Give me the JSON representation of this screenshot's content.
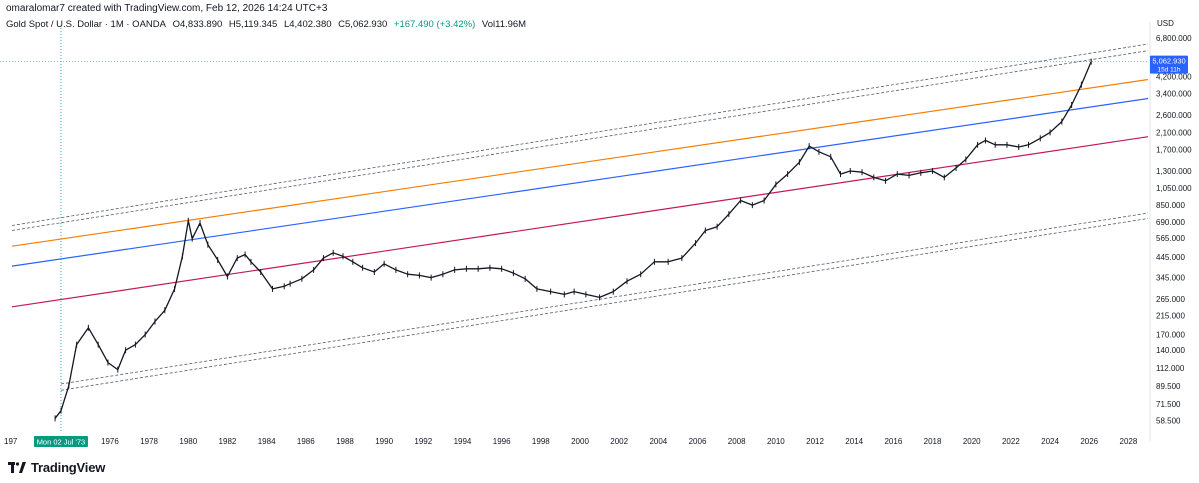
{
  "header": {
    "caption": "omaralomar7 created with TradingView.com, Feb 12, 2026 14:24 UTC+3"
  },
  "symbol": {
    "name": "Gold Spot / U.S. Dollar · 1M · OANDA",
    "open": "O4,833.890",
    "high": "H5,119.345",
    "low": "L4,402.380",
    "close": "C5,062.930",
    "change": "+167.490 (+3.42%)",
    "volume": "Vol11.96M"
  },
  "currency_label": "USD",
  "crosshair_label": "Mon 02 Jul '73",
  "price_tag": {
    "value": "5,062.930",
    "countdown": "15d 11h"
  },
  "logo_text": "TradingView",
  "colors": {
    "orange_line": "#f57c00",
    "blue_line": "#2962ff",
    "red_line": "#c2185b",
    "dashed_channel": "#555b6b",
    "candles": "#131722",
    "price_tag_bg": "#2962ff",
    "crosshair_label_bg": "#089981"
  },
  "chart_data": {
    "type": "line",
    "y_scale": "log",
    "y_range": [
      50,
      7500
    ],
    "x_range": [
      1971,
      2029
    ],
    "y_ticks": [
      "58.500",
      "71.500",
      "89.500",
      "112.000",
      "140.000",
      "170.000",
      "215.000",
      "265.000",
      "345.000",
      "445.000",
      "565.000",
      "690.000",
      "850.000",
      "1,050.000",
      "1,300.000",
      "1,700.000",
      "2,100.000",
      "2,600.000",
      "3,400.000",
      "4,200.000",
      "6,800.000"
    ],
    "x_ticks": [
      "1976",
      "1978",
      "1980",
      "1982",
      "1984",
      "1986",
      "1988",
      "1990",
      "1992",
      "1994",
      "1996",
      "1998",
      "2000",
      "2002",
      "2004",
      "2006",
      "2008",
      "2010",
      "2012",
      "2014",
      "2016",
      "2018",
      "2020",
      "2022",
      "2024",
      "2026",
      "2028"
    ],
    "x_tick_first_partial": "197",
    "series": [
      {
        "x": [
          1973.2,
          1973.5,
          1973.9,
          1974.3,
          1974.9,
          1975.4,
          1975.9,
          1976.4,
          1976.8,
          1977.3,
          1977.8,
          1978.3,
          1978.8,
          1979.3,
          1979.7,
          1980.0,
          1980.2,
          1980.6,
          1981.0,
          1981.5,
          1982.0,
          1982.5,
          1982.9,
          1983.2,
          1983.7,
          1984.3,
          1984.9,
          1985.2,
          1985.8,
          1986.4,
          1986.9,
          1987.4,
          1987.9,
          1988.4,
          1988.9,
          1989.5,
          1990.0,
          1990.6,
          1991.2,
          1991.8,
          1992.4,
          1993.0,
          1993.6,
          1994.2,
          1994.8,
          1995.4,
          1996.0,
          1996.6,
          1997.2,
          1997.8,
          1998.5,
          1999.2,
          1999.7,
          2000.3,
          2001.0,
          2001.7,
          2002.4,
          2003.1,
          2003.8,
          2004.5,
          2005.2,
          2005.9,
          2006.4,
          2007.0,
          2007.6,
          2008.2,
          2008.8,
          2009.4,
          2010.0,
          2010.6,
          2011.2,
          2011.7,
          2012.2,
          2012.8,
          2013.3,
          2013.8,
          2014.4,
          2015.0,
          2015.6,
          2016.2,
          2016.8,
          2017.4,
          2018.0,
          2018.6,
          2019.2,
          2019.7,
          2020.3,
          2020.7,
          2021.2,
          2021.8,
          2022.4,
          2022.9,
          2023.5,
          2024.0,
          2024.6,
          2025.1,
          2025.6,
          2026.1
        ],
        "values": [
          60,
          66,
          90,
          150,
          185,
          150,
          120,
          110,
          140,
          150,
          170,
          200,
          230,
          300,
          450,
          700,
          560,
          680,
          520,
          430,
          350,
          440,
          460,
          420,
          370,
          300,
          310,
          320,
          340,
          380,
          440,
          470,
          450,
          420,
          390,
          370,
          410,
          380,
          360,
          355,
          345,
          360,
          380,
          385,
          385,
          390,
          385,
          365,
          340,
          300,
          290,
          280,
          290,
          280,
          270,
          290,
          330,
          360,
          420,
          420,
          440,
          530,
          620,
          650,
          760,
          900,
          850,
          900,
          1100,
          1250,
          1450,
          1770,
          1650,
          1550,
          1250,
          1300,
          1280,
          1200,
          1150,
          1250,
          1230,
          1270,
          1300,
          1200,
          1350,
          1500,
          1800,
          1900,
          1800,
          1800,
          1750,
          1800,
          1950,
          2100,
          2400,
          2950,
          3800,
          5062.93
        ]
      }
    ],
    "trendlines": [
      {
        "color": "orange",
        "style": "solid",
        "points": [
          [
            1971,
            510
          ],
          [
            2029,
            4050
          ]
        ]
      },
      {
        "color": "blue",
        "style": "solid",
        "points": [
          [
            1971,
            398
          ],
          [
            2029,
            3200
          ]
        ]
      },
      {
        "color": "red",
        "style": "solid",
        "points": [
          [
            1971,
            240
          ],
          [
            2029,
            1990
          ]
        ]
      },
      {
        "color": "dashed",
        "style": "dashed",
        "points": [
          [
            1971,
            660
          ],
          [
            2029,
            6300
          ]
        ]
      },
      {
        "color": "dashed",
        "style": "dashed",
        "points": [
          [
            1971,
            620
          ],
          [
            2029,
            5800
          ]
        ]
      },
      {
        "color": "dashed",
        "style": "dashed",
        "points": [
          [
            1973.5,
            92
          ],
          [
            2029,
            770
          ]
        ]
      },
      {
        "color": "dashed",
        "style": "dashed",
        "points": [
          [
            1973.5,
            85
          ],
          [
            2029,
            720
          ]
        ]
      }
    ],
    "last_price": 5062.93
  }
}
